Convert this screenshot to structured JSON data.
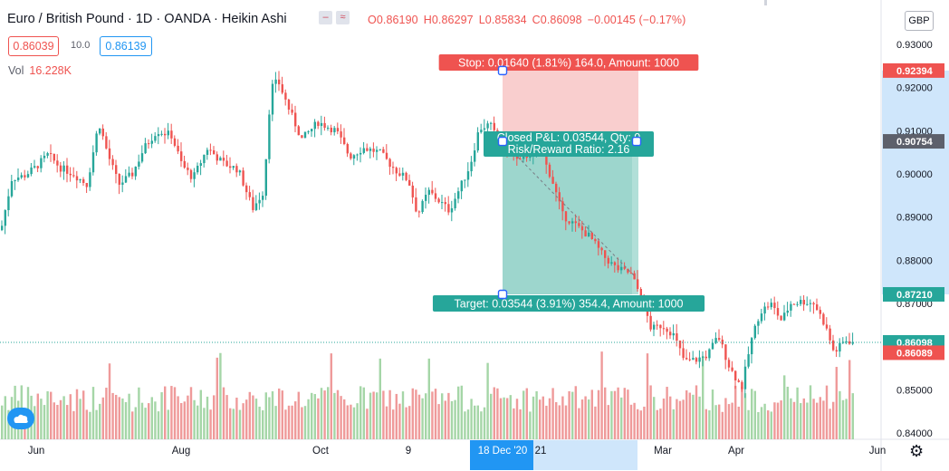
{
  "header": {
    "title": "Euro / British Pound · 1D · OANDA · Heikin Ashi",
    "ohlc": [
      "O0.86190",
      "H0.86297",
      "L0.85834",
      "C0.86098",
      "−0.00145 (−0.17%)"
    ]
  },
  "trade_panel": {
    "sell_price": "0.86039",
    "spread": "10.0",
    "buy_price": "0.86139"
  },
  "volume": {
    "label": "Vol",
    "value": "16.228K"
  },
  "currency_button": "GBP",
  "colors": {
    "up": "#26a69a",
    "down": "#ef5350",
    "vol_up": "#a5d6a7",
    "vol_down": "#ef9a9a",
    "stop_zone": "#f8c6c6",
    "target_zone": "#a8dcd4",
    "axis_hl": "#cfe6fb"
  },
  "chart_data": {
    "type": "candlestick",
    "style": "Heikin Ashi",
    "symbol": "Euro / British Pound",
    "interval": "1D",
    "exchange": "OANDA",
    "ylim": [
      0.838,
      0.9335
    ],
    "y_ticks": [
      "0.93000",
      "0.92000",
      "0.91000",
      "0.90000",
      "0.89000",
      "0.88000",
      "0.87000",
      "0.86000",
      "0.85000",
      "0.84000"
    ],
    "x_ticks": [
      "Jun",
      "Aug",
      "Oct",
      "9",
      "18 Dec '20",
      "21",
      "Mar",
      "Apr",
      "Jun"
    ],
    "close_path_anchors": [
      [
        0,
        0.887
      ],
      [
        12,
        0.899
      ],
      [
        25,
        0.8995
      ],
      [
        38,
        0.9015
      ],
      [
        52,
        0.9045
      ],
      [
        65,
        0.9015
      ],
      [
        80,
        0.9
      ],
      [
        95,
        0.8975
      ],
      [
        108,
        0.912
      ],
      [
        118,
        0.9045
      ],
      [
        130,
        0.8975
      ],
      [
        145,
        0.9
      ],
      [
        158,
        0.906
      ],
      [
        172,
        0.91
      ],
      [
        188,
        0.909
      ],
      [
        200,
        0.902
      ],
      [
        212,
        0.899
      ],
      [
        228,
        0.906
      ],
      [
        245,
        0.9025
      ],
      [
        262,
        0.901
      ],
      [
        278,
        0.892
      ],
      [
        290,
        0.896
      ],
      [
        298,
        0.92
      ],
      [
        306,
        0.9215
      ],
      [
        318,
        0.915
      ],
      [
        332,
        0.908
      ],
      [
        350,
        0.912
      ],
      [
        370,
        0.91
      ],
      [
        385,
        0.904
      ],
      [
        400,
        0.906
      ],
      [
        418,
        0.905
      ],
      [
        435,
        0.901
      ],
      [
        450,
        0.8985
      ],
      [
        460,
        0.8905
      ],
      [
        472,
        0.896
      ],
      [
        485,
        0.8935
      ],
      [
        495,
        0.8915
      ],
      [
        505,
        0.896
      ],
      [
        518,
        0.902
      ],
      [
        528,
        0.9105
      ],
      [
        540,
        0.9115
      ],
      [
        550,
        0.907
      ],
      [
        562,
        0.9055
      ],
      [
        572,
        0.9025
      ],
      [
        582,
        0.9045
      ],
      [
        595,
        0.9055
      ],
      [
        608,
        0.899
      ],
      [
        620,
        0.8905
      ],
      [
        635,
        0.888
      ],
      [
        650,
        0.8855
      ],
      [
        665,
        0.881
      ],
      [
        680,
        0.878
      ],
      [
        695,
        0.877
      ],
      [
        708,
        0.871
      ],
      [
        718,
        0.864
      ],
      [
        730,
        0.865
      ],
      [
        742,
        0.863
      ],
      [
        755,
        0.8565
      ],
      [
        768,
        0.857
      ],
      [
        780,
        0.858
      ],
      [
        792,
        0.8625
      ],
      [
        805,
        0.855
      ],
      [
        818,
        0.8505
      ],
      [
        828,
        0.861
      ],
      [
        838,
        0.868
      ],
      [
        850,
        0.87
      ],
      [
        862,
        0.866
      ],
      [
        872,
        0.87
      ],
      [
        885,
        0.8705
      ],
      [
        898,
        0.87
      ],
      [
        910,
        0.865
      ],
      [
        920,
        0.8585
      ],
      [
        932,
        0.8615
      ],
      [
        944,
        0.861
      ]
    ],
    "price_labels": [
      {
        "value": 0.92394,
        "text": "0.92394",
        "color": "#ef5350"
      },
      {
        "value": 0.90754,
        "text": "0.90754",
        "color": "#5d606b"
      },
      {
        "value": 0.8721,
        "text": "0.87210",
        "color": "#26a69a"
      },
      {
        "value": 0.86098,
        "text": "0.86098",
        "color": "#26a69a"
      },
      {
        "value": 0.86089,
        "text": "0.86089",
        "color": "#ef5350"
      }
    ],
    "current_price": 0.86098,
    "position": {
      "entry": 0.90754,
      "stop": 0.92394,
      "target": 0.8721,
      "stop_label": "Stop: 0.01640 (1.81%) 164.0, Amount: 1000",
      "target_label": "Target: 0.03544 (3.91%) 354.4, Amount: 1000",
      "closed_label_1": "Closed P&L: 0.03544, Qty: 0",
      "closed_label_2": "Risk/Reward Ratio: 2.16"
    }
  }
}
